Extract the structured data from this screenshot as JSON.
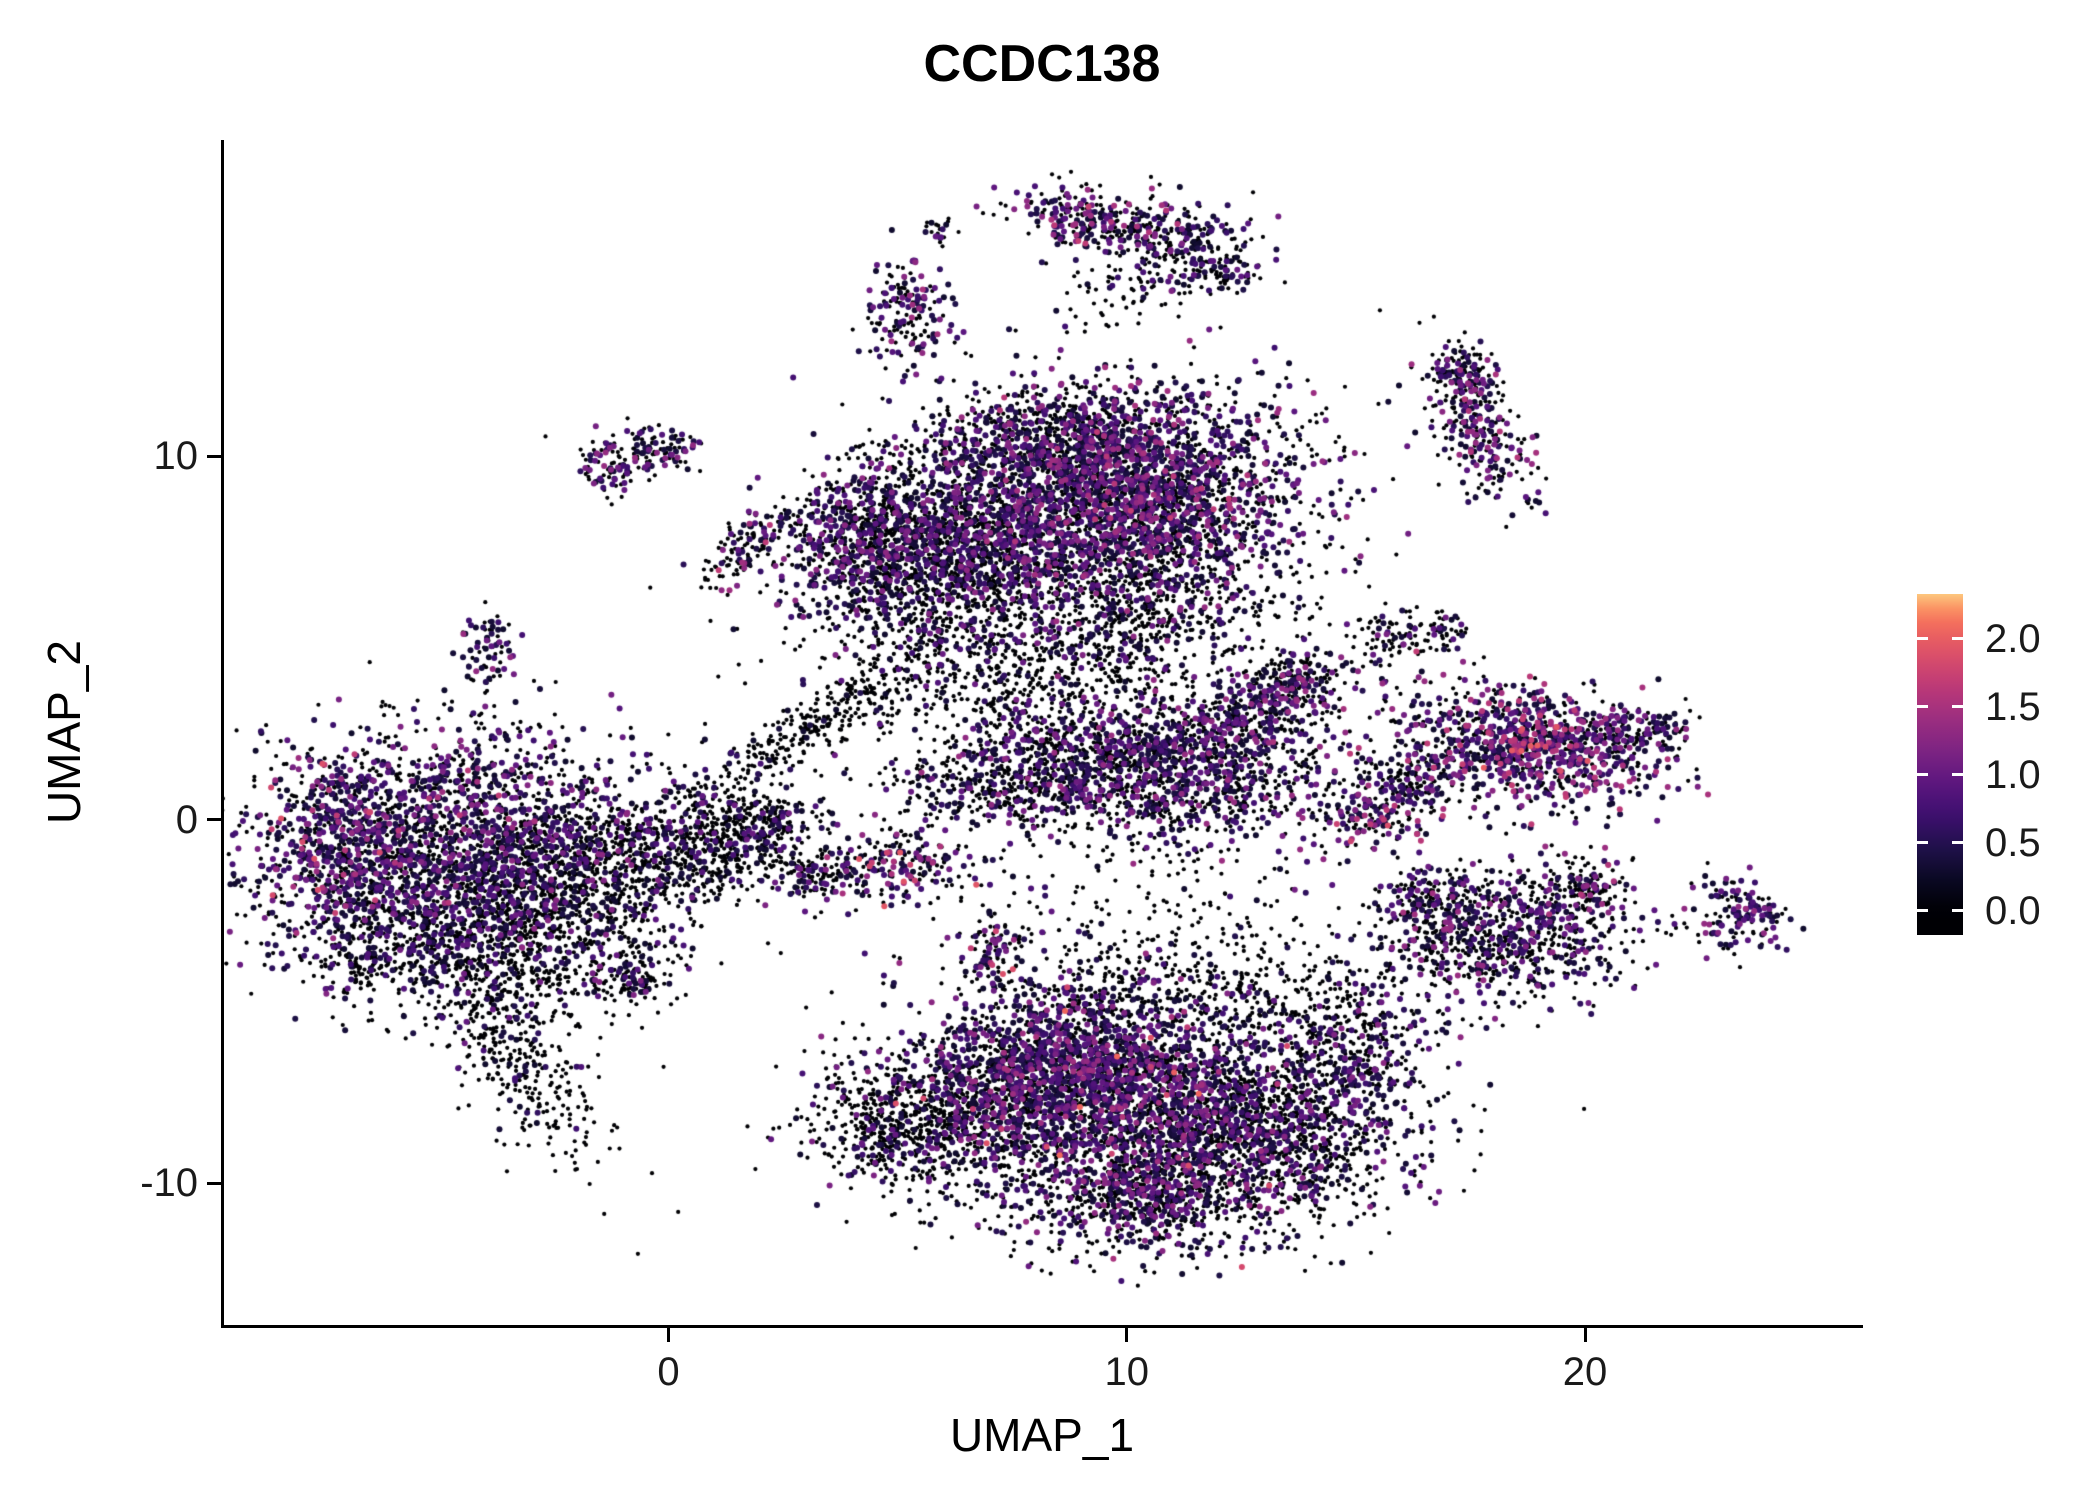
{
  "title": "CCDC138",
  "axes": {
    "x": {
      "label": "UMAP_1",
      "tick_labels": [
        "0",
        "10",
        "20"
      ],
      "tick_values": [
        0,
        10,
        20
      ]
    },
    "y": {
      "label": "UMAP_2",
      "tick_labels": [
        "10",
        "0",
        "-10"
      ],
      "tick_values": [
        10,
        0,
        -10
      ]
    }
  },
  "legend": {
    "tick_labels": [
      "2.0",
      "1.5",
      "1.0",
      "0.5",
      "0.0"
    ],
    "tick_values": [
      2.0,
      1.5,
      1.0,
      0.5,
      0.0
    ],
    "bar_domain": [
      -0.18,
      2.33
    ]
  },
  "chart_data": {
    "type": "scatter",
    "title": "CCDC138",
    "xlabel": "UMAP_1",
    "ylabel": "UMAP_2",
    "xlim": [
      -9.7,
      26.0
    ],
    "ylim": [
      -13.9,
      18.7
    ],
    "x_ticks": [
      0,
      10,
      20
    ],
    "y_ticks": [
      -10,
      0,
      10
    ],
    "grid": false,
    "legend_position": "right",
    "color_scale": {
      "name": "magma-like",
      "domain": [
        0,
        2.33
      ],
      "stops": [
        [
          0.0,
          "#000004"
        ],
        [
          0.1,
          "#0b0924"
        ],
        [
          0.2,
          "#20114b"
        ],
        [
          0.3,
          "#3d0f6f"
        ],
        [
          0.4,
          "#5c167f"
        ],
        [
          0.5,
          "#7b2382"
        ],
        [
          0.6,
          "#9a2d80"
        ],
        [
          0.7,
          "#ba3878"
        ],
        [
          0.8,
          "#d94d6b"
        ],
        [
          0.9,
          "#f2695c"
        ],
        [
          0.95,
          "#fb8d61"
        ],
        [
          1.0,
          "#fdc77e"
        ]
      ]
    },
    "seed": 42,
    "point_radius_zero_px": 2.1,
    "point_radius_expressed_px": 3.0,
    "cluster_fields": [
      "name",
      "cx",
      "cy",
      "sx",
      "sy",
      "rot_deg",
      "n",
      "p_zero",
      "expr_max"
    ],
    "clusters": [
      [
        "left-main",
        -4.6,
        -0.9,
        2.3,
        1.7,
        0,
        2400,
        0.55,
        1.3
      ],
      [
        "left-west-accent",
        -7.2,
        -1.0,
        0.7,
        1.3,
        0,
        260,
        0.35,
        1.9
      ],
      [
        "left-low",
        -4.0,
        -3.4,
        1.8,
        1.1,
        0,
        900,
        0.78,
        1.1
      ],
      [
        "left-tail",
        -3.1,
        -6.6,
        0.6,
        1.6,
        28,
        320,
        0.85,
        1.0
      ],
      [
        "left-tiny-west",
        -6.6,
        -4.1,
        0.35,
        0.3,
        0,
        55,
        0.85,
        0.8
      ],
      [
        "left-tiny-east",
        -0.9,
        -4.3,
        0.5,
        0.4,
        0,
        110,
        0.75,
        1.2
      ],
      [
        "left-arm-east",
        -1.8,
        -1.6,
        1.2,
        0.9,
        0,
        500,
        0.82,
        1.0
      ],
      [
        "left-main-sprinkle",
        -5.5,
        -0.2,
        1.8,
        1.2,
        0,
        150,
        0.2,
        1.7
      ],
      [
        "center-blob",
        0.7,
        -0.7,
        1.1,
        0.8,
        0,
        480,
        0.8,
        1.1
      ],
      [
        "center-ring",
        1.9,
        -0.2,
        0.7,
        0.5,
        0,
        200,
        0.75,
        1.1
      ],
      [
        "bridge-streak",
        3.3,
        2.7,
        1.7,
        0.35,
        38,
        300,
        0.88,
        1.0
      ],
      [
        "main-right-lobe",
        10.0,
        9.0,
        1.9,
        1.5,
        0,
        2500,
        0.5,
        1.5
      ],
      [
        "main-right-sprinkle",
        10.2,
        9.2,
        2.0,
        1.4,
        0,
        200,
        0.12,
        1.7
      ],
      [
        "main-left-lobe",
        6.2,
        7.4,
        1.6,
        1.3,
        0,
        1600,
        0.62,
        1.3
      ],
      [
        "main-far-left",
        4.4,
        7.8,
        0.8,
        1.0,
        0,
        500,
        0.6,
        1.3
      ],
      [
        "main-top",
        8.3,
        10.3,
        1.5,
        0.8,
        0,
        600,
        0.55,
        1.4
      ],
      [
        "main-below-scatter",
        7.6,
        4.8,
        2.0,
        1.2,
        0,
        650,
        0.85,
        1.2
      ],
      [
        "main-right-south",
        10.6,
        6.2,
        0.9,
        1.0,
        0,
        350,
        0.7,
        1.3
      ],
      [
        "midbird-body",
        10.6,
        1.4,
        2.1,
        1.0,
        -8,
        1400,
        0.6,
        1.4
      ],
      [
        "midbird-sprinkle",
        10.2,
        1.6,
        1.8,
        0.8,
        0,
        150,
        0.3,
        1.4
      ],
      [
        "midbird-wing",
        12.9,
        3.1,
        1.0,
        0.6,
        20,
        380,
        0.6,
        1.4
      ],
      [
        "midbird-left",
        7.3,
        0.9,
        1.1,
        0.6,
        0,
        320,
        0.75,
        1.2
      ],
      [
        "midbird-armtip",
        13.8,
        4.0,
        0.4,
        0.3,
        0,
        90,
        0.6,
        1.4
      ],
      [
        "south-core",
        9.2,
        -7.3,
        2.1,
        1.5,
        0,
        2200,
        0.52,
        1.5
      ],
      [
        "south-purple-patch",
        8.8,
        -6.8,
        1.4,
        1.0,
        0,
        500,
        0.3,
        1.3
      ],
      [
        "south-east",
        12.6,
        -8.6,
        1.8,
        1.2,
        0,
        1500,
        0.68,
        1.3
      ],
      [
        "south-west",
        6.0,
        -8.2,
        1.3,
        1.0,
        0,
        750,
        0.8,
        1.2
      ],
      [
        "south-west-tip",
        4.6,
        -8.6,
        0.5,
        0.7,
        25,
        150,
        0.8,
        1.2
      ],
      [
        "south-bottom",
        10.4,
        -10.6,
        1.6,
        0.8,
        0,
        520,
        0.7,
        1.4
      ],
      [
        "south-bottom-patch",
        10.3,
        -10.3,
        0.9,
        0.5,
        0,
        150,
        0.35,
        1.3
      ],
      [
        "south-top-scatter",
        12.0,
        -4.9,
        2.2,
        0.8,
        0,
        420,
        0.88,
        1.2
      ],
      [
        "south-right-knob",
        14.9,
        -6.4,
        0.8,
        0.9,
        0,
        330,
        0.6,
        1.3
      ],
      [
        "south-sprinkle",
        9.5,
        -7.8,
        2.5,
        1.8,
        0,
        120,
        0.15,
        2.1
      ],
      [
        "east-main",
        18.6,
        2.0,
        1.5,
        0.85,
        -12,
        850,
        0.45,
        1.7
      ],
      [
        "east-accent",
        18.9,
        2.1,
        0.8,
        0.5,
        -12,
        160,
        0.15,
        2.0
      ],
      [
        "east-tip",
        21.1,
        2.4,
        0.6,
        0.4,
        0,
        150,
        0.55,
        1.4
      ],
      [
        "east-left-arm",
        16.3,
        1.0,
        0.5,
        0.4,
        0,
        120,
        0.7,
        1.2
      ],
      [
        "southeast-main",
        18.3,
        -3.2,
        1.4,
        0.95,
        10,
        800,
        0.62,
        1.4
      ],
      [
        "southeast-arm",
        19.9,
        -1.9,
        0.6,
        0.4,
        30,
        140,
        0.55,
        1.6
      ],
      [
        "southeast-west-knob",
        16.6,
        -2.3,
        0.5,
        0.45,
        0,
        140,
        0.6,
        1.5
      ],
      [
        "far-right",
        23.4,
        -2.6,
        0.55,
        0.55,
        -20,
        140,
        0.4,
        1.4
      ],
      [
        "right-streak",
        17.7,
        10.9,
        0.45,
        1.1,
        20,
        280,
        0.5,
        1.6
      ],
      [
        "right-streak-top",
        17.3,
        12.4,
        0.35,
        0.4,
        0,
        90,
        0.5,
        1.5
      ],
      [
        "top-arc-left",
        9.7,
        16.5,
        1.1,
        0.4,
        -12,
        260,
        0.55,
        1.6
      ],
      [
        "top-arc-right",
        11.3,
        15.7,
        0.7,
        0.5,
        0,
        180,
        0.65,
        1.3
      ],
      [
        "top-arc-tail",
        12.1,
        15.1,
        0.4,
        0.3,
        0,
        60,
        0.6,
        1.2
      ],
      [
        "top-arc-accent",
        9.0,
        16.2,
        0.4,
        0.3,
        0,
        50,
        0.2,
        1.8
      ],
      [
        "top-arc-below",
        10.0,
        14.6,
        0.8,
        0.5,
        0,
        70,
        0.85,
        1.0
      ],
      [
        "topmid-small",
        5.2,
        14.1,
        0.45,
        0.75,
        0,
        170,
        0.5,
        1.5
      ],
      [
        "topmid-dot",
        5.9,
        16.2,
        0.2,
        0.2,
        0,
        20,
        0.7,
        1.0
      ],
      [
        "upleft-pair-a",
        -1.3,
        9.7,
        0.4,
        0.4,
        0,
        90,
        0.55,
        1.4
      ],
      [
        "upleft-pair-b",
        -0.2,
        10.2,
        0.45,
        0.35,
        0,
        90,
        0.55,
        1.4
      ],
      [
        "upleft-streak",
        1.8,
        7.5,
        0.8,
        0.3,
        40,
        130,
        0.6,
        1.7
      ],
      [
        "west-small",
        -3.9,
        4.7,
        0.3,
        0.55,
        0,
        70,
        0.5,
        1.4
      ],
      [
        "center-small-a",
        3.3,
        -1.5,
        0.5,
        0.4,
        0,
        120,
        0.65,
        1.3
      ],
      [
        "center-small-b",
        5.1,
        -1.2,
        0.65,
        0.5,
        0,
        170,
        0.45,
        2.0
      ],
      [
        "center-small-c",
        7.1,
        -3.7,
        0.3,
        0.55,
        0,
        75,
        0.5,
        1.9
      ],
      [
        "right-small-a",
        15.3,
        0.2,
        0.65,
        0.5,
        0,
        150,
        0.45,
        1.9
      ],
      [
        "right-sparse-a",
        15.9,
        5.0,
        0.5,
        0.4,
        0,
        80,
        0.8,
        1.2
      ],
      [
        "right-sparse-b",
        16.9,
        5.2,
        0.3,
        0.25,
        0,
        40,
        0.6,
        1.4
      ],
      [
        "right-noise",
        13.5,
        5.5,
        1.0,
        0.8,
        0,
        60,
        0.9,
        1.2
      ],
      [
        "midfield-noise",
        7.0,
        3.0,
        2.8,
        1.8,
        0,
        260,
        0.93,
        1.0
      ],
      [
        "southfield-noise",
        10.0,
        -2.8,
        3.0,
        1.2,
        0,
        220,
        0.92,
        1.0
      ]
    ]
  }
}
